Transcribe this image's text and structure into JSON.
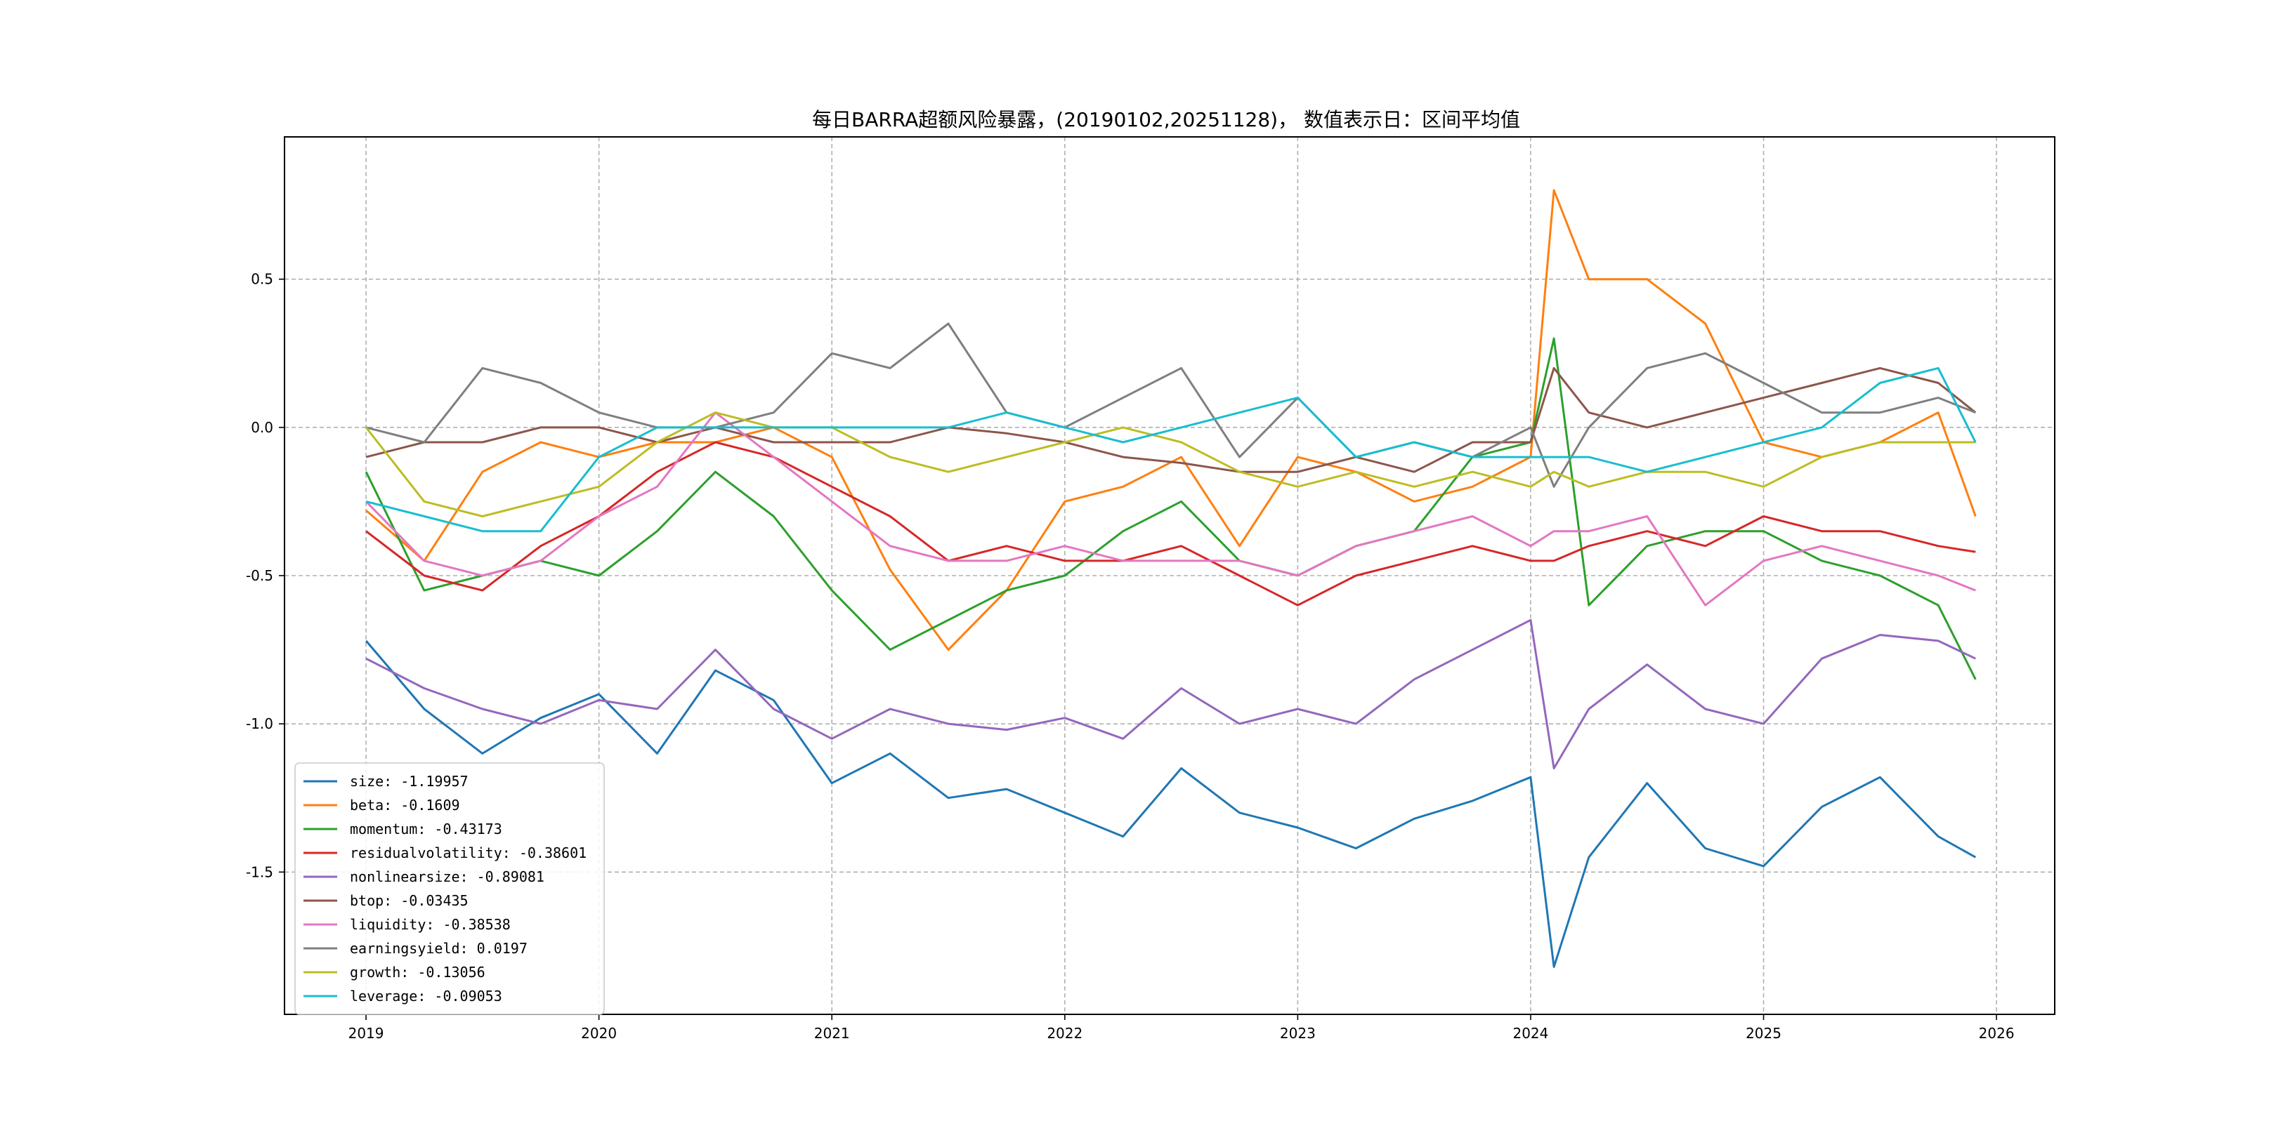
{
  "chart_data": {
    "type": "line",
    "title": "每日BARRA超额风险暴露，(20190102,20251128)， 数值表示日：区间平均值",
    "xlabel": "",
    "ylabel": "",
    "x_ticks": [
      "2019",
      "2020",
      "2021",
      "2022",
      "2023",
      "2024",
      "2025",
      "2026"
    ],
    "y_ticks": [
      "-1.5",
      "-1.0",
      "-0.5",
      "0.0",
      "0.5"
    ],
    "xlim": [
      2018.65,
      2026.25
    ],
    "ylim": [
      -1.98,
      0.98
    ],
    "grid": true,
    "legend_position": "lower-left",
    "x": [
      2019.0,
      2019.25,
      2019.5,
      2019.75,
      2020.0,
      2020.25,
      2020.5,
      2020.75,
      2021.0,
      2021.25,
      2021.5,
      2021.75,
      2022.0,
      2022.25,
      2022.5,
      2022.75,
      2023.0,
      2023.25,
      2023.5,
      2023.75,
      2024.0,
      2024.1,
      2024.25,
      2024.5,
      2024.75,
      2025.0,
      2025.25,
      2025.5,
      2025.75,
      2025.91
    ],
    "series": [
      {
        "name": "size",
        "legend": "size: -1.19957",
        "color": "#1f77b4",
        "values": [
          -0.72,
          -0.95,
          -1.1,
          -0.98,
          -0.9,
          -1.1,
          -0.82,
          -0.92,
          -1.2,
          -1.1,
          -1.25,
          -1.22,
          -1.3,
          -1.38,
          -1.15,
          -1.3,
          -1.35,
          -1.42,
          -1.32,
          -1.26,
          -1.18,
          -1.82,
          -1.45,
          -1.2,
          -1.42,
          -1.48,
          -1.28,
          -1.18,
          -1.38,
          -1.45
        ]
      },
      {
        "name": "beta",
        "legend": "beta: -0.1609",
        "color": "#ff7f0e",
        "values": [
          -0.28,
          -0.45,
          -0.15,
          -0.05,
          -0.1,
          -0.05,
          -0.05,
          0.0,
          -0.1,
          -0.48,
          -0.75,
          -0.55,
          -0.25,
          -0.2,
          -0.1,
          -0.4,
          -0.1,
          -0.15,
          -0.25,
          -0.2,
          -0.1,
          0.8,
          0.5,
          0.5,
          0.35,
          -0.05,
          -0.1,
          -0.05,
          0.05,
          -0.3
        ]
      },
      {
        "name": "momentum",
        "legend": "momentum: -0.43173",
        "color": "#2ca02c",
        "values": [
          -0.15,
          -0.55,
          -0.5,
          -0.45,
          -0.5,
          -0.35,
          -0.15,
          -0.3,
          -0.55,
          -0.75,
          -0.65,
          -0.55,
          -0.5,
          -0.35,
          -0.25,
          -0.45,
          -0.5,
          -0.4,
          -0.35,
          -0.1,
          -0.05,
          0.3,
          -0.6,
          -0.4,
          -0.35,
          -0.35,
          -0.45,
          -0.5,
          -0.6,
          -0.85
        ]
      },
      {
        "name": "residualvolatility",
        "legend": "residualvolatility: -0.38601",
        "color": "#d62728",
        "values": [
          -0.35,
          -0.5,
          -0.55,
          -0.4,
          -0.3,
          -0.15,
          -0.05,
          -0.1,
          -0.2,
          -0.3,
          -0.45,
          -0.4,
          -0.45,
          -0.45,
          -0.4,
          -0.5,
          -0.6,
          -0.5,
          -0.45,
          -0.4,
          -0.45,
          -0.45,
          -0.4,
          -0.35,
          -0.4,
          -0.3,
          -0.35,
          -0.35,
          -0.4,
          -0.42
        ]
      },
      {
        "name": "nonlinearsize",
        "legend": "nonlinearsize: -0.89081",
        "color": "#9467bd",
        "values": [
          -0.78,
          -0.88,
          -0.95,
          -1.0,
          -0.92,
          -0.95,
          -0.75,
          -0.95,
          -1.05,
          -0.95,
          -1.0,
          -1.02,
          -0.98,
          -1.05,
          -0.88,
          -1.0,
          -0.95,
          -1.0,
          -0.85,
          -0.75,
          -0.65,
          -1.15,
          -0.95,
          -0.8,
          -0.95,
          -1.0,
          -0.78,
          -0.7,
          -0.72,
          -0.78
        ]
      },
      {
        "name": "btop",
        "legend": "btop: -0.03435",
        "color": "#8c564b",
        "values": [
          -0.1,
          -0.05,
          -0.05,
          0.0,
          0.0,
          -0.05,
          0.0,
          -0.05,
          -0.05,
          -0.05,
          0.0,
          -0.02,
          -0.05,
          -0.1,
          -0.12,
          -0.15,
          -0.15,
          -0.1,
          -0.15,
          -0.05,
          -0.05,
          0.2,
          0.05,
          0.0,
          0.05,
          0.1,
          0.15,
          0.2,
          0.15,
          0.05
        ]
      },
      {
        "name": "liquidity",
        "legend": "liquidity: -0.38538",
        "color": "#e377c2",
        "values": [
          -0.25,
          -0.45,
          -0.5,
          -0.45,
          -0.3,
          -0.2,
          0.05,
          -0.1,
          -0.25,
          -0.4,
          -0.45,
          -0.45,
          -0.4,
          -0.45,
          -0.45,
          -0.45,
          -0.5,
          -0.4,
          -0.35,
          -0.3,
          -0.4,
          -0.35,
          -0.35,
          -0.3,
          -0.6,
          -0.45,
          -0.4,
          -0.45,
          -0.5,
          -0.55
        ]
      },
      {
        "name": "earningsyield",
        "legend": "earningsyield: 0.0197",
        "color": "#7f7f7f",
        "values": [
          0.0,
          -0.05,
          0.2,
          0.15,
          0.05,
          0.0,
          0.0,
          0.05,
          0.25,
          0.2,
          0.35,
          0.05,
          0.0,
          0.1,
          0.2,
          -0.1,
          0.1,
          -0.1,
          -0.05,
          -0.1,
          0.0,
          -0.2,
          0.0,
          0.2,
          0.25,
          0.15,
          0.05,
          0.05,
          0.1,
          0.05
        ]
      },
      {
        "name": "growth",
        "legend": "growth: -0.13056",
        "color": "#bcbd22",
        "values": [
          0.0,
          -0.25,
          -0.3,
          -0.25,
          -0.2,
          -0.05,
          0.05,
          0.0,
          0.0,
          -0.1,
          -0.15,
          -0.1,
          -0.05,
          0.0,
          -0.05,
          -0.15,
          -0.2,
          -0.15,
          -0.2,
          -0.15,
          -0.2,
          -0.15,
          -0.2,
          -0.15,
          -0.15,
          -0.2,
          -0.1,
          -0.05,
          -0.05,
          -0.05
        ]
      },
      {
        "name": "leverage",
        "legend": "leverage: -0.09053",
        "color": "#17becf",
        "values": [
          -0.25,
          -0.3,
          -0.35,
          -0.35,
          -0.1,
          0.0,
          0.0,
          0.0,
          0.0,
          0.0,
          0.0,
          0.05,
          0.0,
          -0.05,
          0.0,
          0.05,
          0.1,
          -0.1,
          -0.05,
          -0.1,
          -0.1,
          -0.1,
          -0.1,
          -0.15,
          -0.1,
          -0.05,
          0.0,
          0.15,
          0.2,
          -0.05
        ]
      }
    ]
  }
}
